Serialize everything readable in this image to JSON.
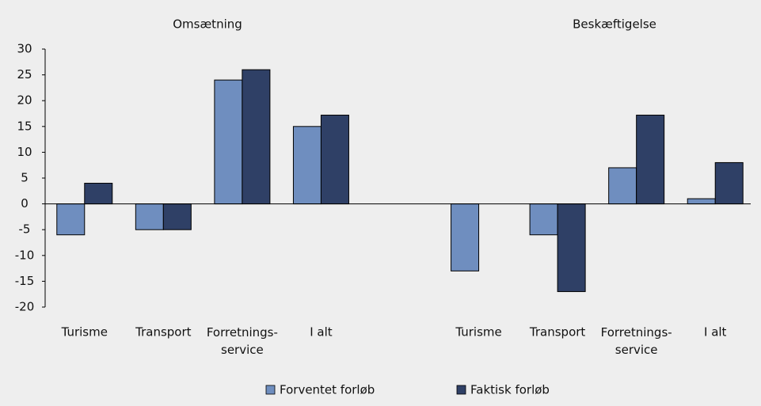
{
  "chart_data": {
    "type": "bar",
    "annotations": [
      "Omsætning",
      "Beskæftigelse"
    ],
    "categories": [
      "Turisme",
      "Transport",
      "Forretnings-\nservice",
      "I alt",
      null,
      "Turisme",
      "Transport",
      "Forretnings-\nservice",
      "I alt"
    ],
    "series": [
      {
        "name": "Forventet forløb",
        "color": "#6f8ebf",
        "values": [
          -6,
          -5,
          24,
          15,
          null,
          -13,
          -6,
          7,
          1
        ]
      },
      {
        "name": "Faktisk forløb",
        "color": "#2f4066",
        "values": [
          4,
          -5,
          26,
          17.2,
          null,
          0,
          -17,
          17.2,
          8
        ]
      }
    ],
    "ylim": [
      -20,
      30
    ],
    "yticks": [
      -20,
      -15,
      -10,
      -5,
      0,
      5,
      10,
      15,
      20,
      25,
      30
    ],
    "grid": false,
    "legend": "bottom"
  }
}
